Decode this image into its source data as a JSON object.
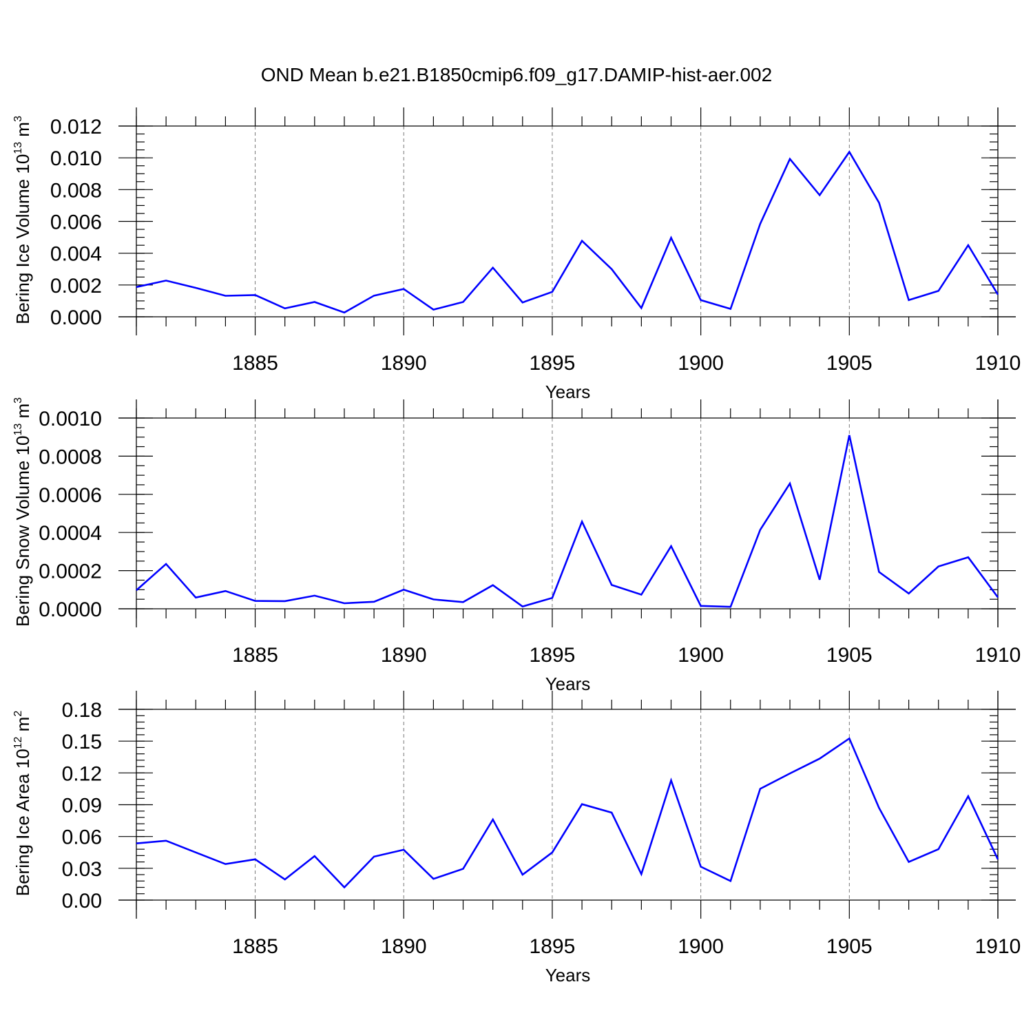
{
  "chart_data": {
    "type": "line",
    "title": "OND Mean b.e21.B1850cmip6.f09_g17.DAMIP-hist-aer.002",
    "line_color": "#0000ff",
    "panels": [
      {
        "ylabel_main": "Bering Ice Volume 10",
        "ylabel_exp1": "13",
        "ylabel_unit": " m",
        "ylabel_exp2": "3",
        "xlabel": "Years",
        "xlim": [
          1881,
          1910
        ],
        "ylim": [
          0,
          0.012
        ],
        "xticks": [
          {
            "value": 1885,
            "label": "1885"
          },
          {
            "value": 1890,
            "label": "1890"
          },
          {
            "value": 1895,
            "label": "1895"
          },
          {
            "value": 1900,
            "label": "1900"
          },
          {
            "value": 1905,
            "label": "1905"
          },
          {
            "value": 1910,
            "label": "1910"
          }
        ],
        "yticks": [
          {
            "value": 0,
            "label": "0.000"
          },
          {
            "value": 0.002,
            "label": "0.002"
          },
          {
            "value": 0.004,
            "label": "0.004"
          },
          {
            "value": 0.006,
            "label": "0.006"
          },
          {
            "value": 0.008,
            "label": "0.008"
          },
          {
            "value": 0.01,
            "label": "0.010"
          },
          {
            "value": 0.012,
            "label": "0.012"
          }
        ],
        "y_minor_step": 0.0005,
        "x": [
          1881,
          1882,
          1883,
          1884,
          1885,
          1886,
          1887,
          1888,
          1889,
          1890,
          1891,
          1892,
          1893,
          1894,
          1895,
          1896,
          1897,
          1898,
          1899,
          1900,
          1901,
          1902,
          1903,
          1904,
          1905,
          1906,
          1907,
          1908,
          1909,
          1910
        ],
        "values": [
          0.00187,
          0.00228,
          0.00182,
          0.00132,
          0.00137,
          0.00053,
          0.00093,
          0.00027,
          0.00133,
          0.00175,
          0.00045,
          0.00093,
          0.00309,
          0.0009,
          0.00157,
          0.00478,
          0.003,
          0.00055,
          0.00497,
          0.00105,
          0.0005,
          0.00585,
          0.00993,
          0.00765,
          0.01037,
          0.00718,
          0.00105,
          0.00163,
          0.0045,
          0.0014
        ]
      },
      {
        "ylabel_main": "Bering Snow Volume 10",
        "ylabel_exp1": "13",
        "ylabel_unit": " m",
        "ylabel_exp2": "3",
        "xlabel": "Years",
        "xlim": [
          1881,
          1910
        ],
        "ylim": [
          0,
          0.001
        ],
        "xticks": [
          {
            "value": 1885,
            "label": "1885"
          },
          {
            "value": 1890,
            "label": "1890"
          },
          {
            "value": 1895,
            "label": "1895"
          },
          {
            "value": 1900,
            "label": "1900"
          },
          {
            "value": 1905,
            "label": "1905"
          },
          {
            "value": 1910,
            "label": "1910"
          }
        ],
        "yticks": [
          {
            "value": 0,
            "label": "0.0000"
          },
          {
            "value": 0.0002,
            "label": "0.0002"
          },
          {
            "value": 0.0004,
            "label": "0.0004"
          },
          {
            "value": 0.0006,
            "label": "0.0006"
          },
          {
            "value": 0.0008,
            "label": "0.0008"
          },
          {
            "value": 0.001,
            "label": "0.0010"
          }
        ],
        "y_minor_step": 5e-05,
        "x": [
          1881,
          1882,
          1883,
          1884,
          1885,
          1886,
          1887,
          1888,
          1889,
          1890,
          1891,
          1892,
          1893,
          1894,
          1895,
          1896,
          1897,
          1898,
          1899,
          1900,
          1901,
          1902,
          1903,
          1904,
          1905,
          1906,
          1907,
          1908,
          1909,
          1910
        ],
        "values": [
          9.7e-05,
          0.000235,
          5.9e-05,
          9.3e-05,
          4.1e-05,
          4e-05,
          6.9e-05,
          2.9e-05,
          3.7e-05,
          0.0001,
          4.9e-05,
          3.5e-05,
          0.000124,
          1.2e-05,
          5.7e-05,
          0.000457,
          0.000125,
          7.4e-05,
          0.000328,
          1.5e-05,
          1e-05,
          0.000414,
          0.000657,
          0.000152,
          0.00091,
          0.000193,
          8e-05,
          0.000222,
          0.00027,
          6e-05
        ]
      },
      {
        "ylabel_main": "Bering Ice Area 10",
        "ylabel_exp1": "12",
        "ylabel_unit": " m",
        "ylabel_exp2": "2",
        "xlabel": "Years",
        "xlim": [
          1881,
          1910
        ],
        "ylim": [
          0,
          0.18
        ],
        "xticks": [
          {
            "value": 1885,
            "label": "1885"
          },
          {
            "value": 1890,
            "label": "1890"
          },
          {
            "value": 1895,
            "label": "1895"
          },
          {
            "value": 1900,
            "label": "1900"
          },
          {
            "value": 1905,
            "label": "1905"
          },
          {
            "value": 1910,
            "label": "1910"
          }
        ],
        "yticks": [
          {
            "value": 0,
            "label": "0.00"
          },
          {
            "value": 0.03,
            "label": "0.03"
          },
          {
            "value": 0.06,
            "label": "0.06"
          },
          {
            "value": 0.09,
            "label": "0.09"
          },
          {
            "value": 0.12,
            "label": "0.12"
          },
          {
            "value": 0.15,
            "label": "0.15"
          },
          {
            "value": 0.18,
            "label": "0.18"
          }
        ],
        "y_minor_step": 0.006,
        "x": [
          1881,
          1882,
          1883,
          1884,
          1885,
          1886,
          1887,
          1888,
          1889,
          1890,
          1891,
          1892,
          1893,
          1894,
          1895,
          1896,
          1897,
          1898,
          1899,
          1900,
          1901,
          1902,
          1903,
          1904,
          1905,
          1906,
          1907,
          1908,
          1909,
          1910
        ],
        "values": [
          0.0535,
          0.056,
          0.045,
          0.034,
          0.0385,
          0.0195,
          0.0415,
          0.012,
          0.041,
          0.0475,
          0.02,
          0.0295,
          0.076,
          0.024,
          0.045,
          0.0905,
          0.0825,
          0.0245,
          0.113,
          0.0315,
          0.018,
          0.105,
          0.1195,
          0.1335,
          0.1525,
          0.087,
          0.036,
          0.048,
          0.098,
          0.0385
        ]
      }
    ]
  }
}
